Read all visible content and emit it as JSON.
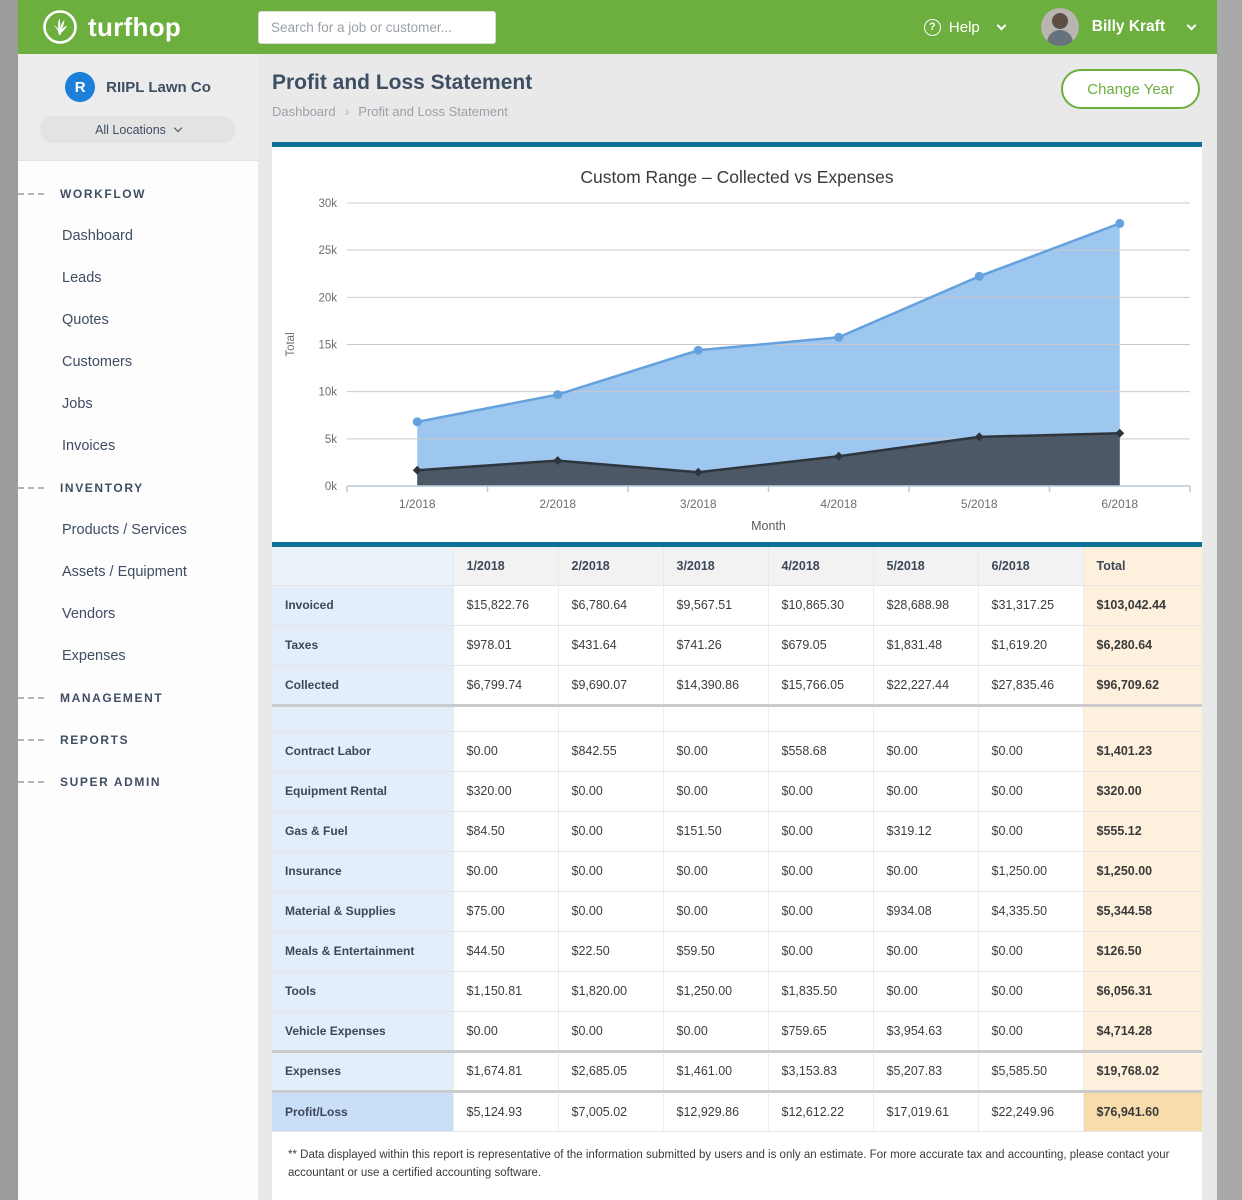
{
  "header": {
    "brand": "turfhop",
    "search_placeholder": "Search for a job or customer...",
    "help_icon_glyph": "?",
    "help_label": "Help",
    "user_name": "Billy Kraft"
  },
  "sidebar": {
    "company": "RIIPL Lawn Co",
    "company_initial": "R",
    "location_selector": "All Locations",
    "sections": [
      {
        "label": "WORKFLOW",
        "items": [
          "Dashboard",
          "Leads",
          "Quotes",
          "Customers",
          "Jobs",
          "Invoices"
        ]
      },
      {
        "label": "INVENTORY",
        "items": [
          "Products / Services",
          "Assets / Equipment",
          "Vendors",
          "Expenses"
        ]
      },
      {
        "label": "MANAGEMENT",
        "items": []
      },
      {
        "label": "REPORTS",
        "items": []
      },
      {
        "label": "SUPER ADMIN",
        "items": []
      }
    ]
  },
  "page": {
    "title": "Profit and Loss Statement",
    "breadcrumb": [
      "Dashboard",
      "Profit and Loss Statement"
    ],
    "breadcrumb_separator": "›",
    "change_year_label": "Change Year"
  },
  "chart_data": {
    "type": "area",
    "title": "Custom Range – Collected vs Expenses",
    "xlabel": "Month",
    "ylabel": "Total",
    "categories": [
      "1/2018",
      "2/2018",
      "3/2018",
      "4/2018",
      "5/2018",
      "6/2018"
    ],
    "series": [
      {
        "name": "Collected",
        "values": [
          6799.74,
          9690.07,
          14390.86,
          15766.05,
          22227.44,
          27835.46
        ],
        "line_color": "#64a1dd",
        "fill_color": "#9ec7f0",
        "marker": "circle"
      },
      {
        "name": "Expenses",
        "values": [
          1674.81,
          2685.05,
          1461.0,
          3153.83,
          5207.83,
          5585.5
        ],
        "line_color": "#2f353c",
        "fill_color": "#4d5866",
        "marker": "diamond"
      }
    ],
    "ylim": [
      0,
      30000
    ],
    "ytick_step": 5000,
    "ytick_labels": [
      "0k",
      "5k",
      "10k",
      "15k",
      "20k",
      "25k",
      "30k"
    ],
    "grid": true,
    "legend": false
  },
  "table": {
    "columns": [
      "1/2018",
      "2/2018",
      "3/2018",
      "4/2018",
      "5/2018",
      "6/2018",
      "Total"
    ],
    "rows": [
      {
        "kind": "data",
        "label": "Invoiced",
        "values": [
          "$15,822.76",
          "$6,780.64",
          "$9,567.51",
          "$10,865.30",
          "$28,688.98",
          "$31,317.25"
        ],
        "total": "$103,042.44"
      },
      {
        "kind": "data",
        "label": "Taxes",
        "values": [
          "$978.01",
          "$431.64",
          "$741.26",
          "$679.05",
          "$1,831.48",
          "$1,619.20"
        ],
        "total": "$6,280.64"
      },
      {
        "kind": "data",
        "label": "Collected",
        "values": [
          "$6,799.74",
          "$9,690.07",
          "$14,390.86",
          "$15,766.05",
          "$22,227.44",
          "$27,835.46"
        ],
        "total": "$96,709.62"
      },
      {
        "kind": "spacer"
      },
      {
        "kind": "data",
        "label": "Contract Labor",
        "values": [
          "$0.00",
          "$842.55",
          "$0.00",
          "$558.68",
          "$0.00",
          "$0.00"
        ],
        "total": "$1,401.23"
      },
      {
        "kind": "data",
        "label": "Equipment Rental",
        "values": [
          "$320.00",
          "$0.00",
          "$0.00",
          "$0.00",
          "$0.00",
          "$0.00"
        ],
        "total": "$320.00"
      },
      {
        "kind": "data",
        "label": "Gas & Fuel",
        "values": [
          "$84.50",
          "$0.00",
          "$151.50",
          "$0.00",
          "$319.12",
          "$0.00"
        ],
        "total": "$555.12"
      },
      {
        "kind": "data",
        "label": "Insurance",
        "values": [
          "$0.00",
          "$0.00",
          "$0.00",
          "$0.00",
          "$0.00",
          "$1,250.00"
        ],
        "total": "$1,250.00"
      },
      {
        "kind": "data",
        "label": "Material & Supplies",
        "values": [
          "$75.00",
          "$0.00",
          "$0.00",
          "$0.00",
          "$934.08",
          "$4,335.50"
        ],
        "total": "$5,344.58"
      },
      {
        "kind": "data",
        "label": "Meals & Entertainment",
        "values": [
          "$44.50",
          "$22.50",
          "$59.50",
          "$0.00",
          "$0.00",
          "$0.00"
        ],
        "total": "$126.50"
      },
      {
        "kind": "data",
        "label": "Tools",
        "values": [
          "$1,150.81",
          "$1,820.00",
          "$1,250.00",
          "$1,835.50",
          "$0.00",
          "$0.00"
        ],
        "total": "$6,056.31"
      },
      {
        "kind": "data",
        "label": "Vehicle Expenses",
        "values": [
          "$0.00",
          "$0.00",
          "$0.00",
          "$759.65",
          "$3,954.63",
          "$0.00"
        ],
        "total": "$4,714.28"
      },
      {
        "kind": "subtotal",
        "label": "Expenses",
        "values": [
          "$1,674.81",
          "$2,685.05",
          "$1,461.00",
          "$3,153.83",
          "$5,207.83",
          "$5,585.50"
        ],
        "total": "$19,768.02"
      },
      {
        "kind": "result",
        "label": "Profit/Loss",
        "values": [
          "$5,124.93",
          "$7,005.02",
          "$12,929.86",
          "$12,612.22",
          "$17,019.61",
          "$22,249.96"
        ],
        "total": "$76,941.60"
      }
    ]
  },
  "footnote": "** Data displayed within this report is representative of the information submitted by users and is only an estimate. For more accurate tax and accounting, please contact your accountant or use a certified accounting software."
}
